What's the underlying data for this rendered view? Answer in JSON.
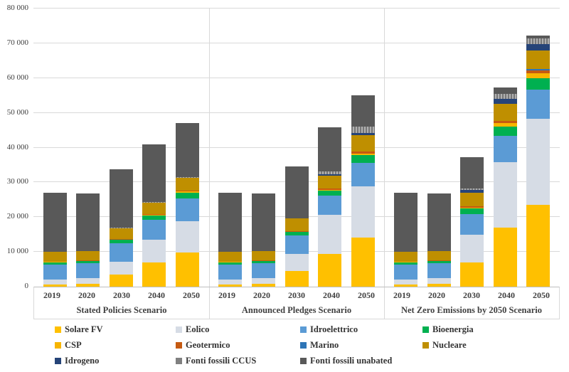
{
  "chart_data": {
    "type": "bar",
    "subtype": "stacked-column",
    "title": "",
    "xlabel": "",
    "ylabel": "",
    "y_axis": {
      "min": 0,
      "max": 80000,
      "tick_step": 10000,
      "tick_labels": [
        "0",
        "10 000",
        "20 000",
        "30 000",
        "40 000",
        "50 000",
        "60 000",
        "70 000",
        "80 000"
      ],
      "grid": true
    },
    "legend_position": "bottom",
    "scenarios": [
      {
        "label": "Stated Policies Scenario",
        "years": [
          "2019",
          "2020",
          "2030",
          "2040",
          "2050"
        ]
      },
      {
        "label": "Announced Pledges Scenario",
        "years": [
          "2019",
          "2020",
          "2030",
          "2040",
          "2050"
        ]
      },
      {
        "label": "Net Zero Emissions by 2050 Scenario",
        "years": [
          "2019",
          "2020",
          "2030",
          "2040",
          "2050"
        ]
      }
    ],
    "series": [
      {
        "name": "Solare FV",
        "color": "#FFC000",
        "hatch": false,
        "values": [
          [
            681,
            821,
            3450,
            6900,
            9900
          ],
          [
            681,
            821,
            4500,
            9400,
            14100
          ],
          [
            681,
            821,
            6970,
            17030,
            23470
          ]
        ]
      },
      {
        "name": "Eolico",
        "color": "#D6DCE5",
        "hatch": false,
        "values": [
          [
            1420,
            1592,
            3650,
            6700,
            8850
          ],
          [
            1420,
            1592,
            4900,
            11300,
            14700
          ],
          [
            1420,
            1592,
            8010,
            18790,
            24785
          ]
        ]
      },
      {
        "name": "Idroelettrico",
        "color": "#5B9BD5",
        "hatch": false,
        "values": [
          [
            4330,
            4347,
            5300,
            5600,
            6600
          ],
          [
            4330,
            4347,
            5250,
            5400,
            6900
          ],
          [
            4330,
            4347,
            5870,
            7540,
            8460
          ]
        ]
      },
      {
        "name": "Bioenergia",
        "color": "#00B050",
        "hatch": false,
        "values": [
          [
            625,
            666,
            1020,
            1300,
            1700
          ],
          [
            625,
            666,
            1100,
            1500,
            2100
          ],
          [
            625,
            666,
            1715,
            2730,
            3280
          ]
        ]
      },
      {
        "name": "CSP",
        "color": "#F7B500",
        "hatch": false,
        "values": [
          [
            13,
            14,
            50,
            120,
            300
          ],
          [
            13,
            14,
            80,
            250,
            500
          ],
          [
            13,
            14,
            205,
            930,
            1385
          ]
        ]
      },
      {
        "name": "Geotermico",
        "color": "#C55A11",
        "hatch": false,
        "values": [
          [
            89,
            94,
            150,
            230,
            330
          ],
          [
            89,
            94,
            180,
            300,
            500
          ],
          [
            89,
            94,
            330,
            575,
            820
          ]
        ]
      },
      {
        "name": "Marino",
        "color": "#2E75B6",
        "hatch": false,
        "values": [
          [
            1,
            1,
            5,
            20,
            40
          ],
          [
            1,
            1,
            10,
            60,
            110
          ],
          [
            1,
            1,
            55,
            165,
            345
          ]
        ]
      },
      {
        "name": "Nucleare",
        "color": "#BF8F00",
        "hatch": false,
        "values": [
          [
            2790,
            2698,
            3250,
            3300,
            3650
          ],
          [
            2790,
            2698,
            3550,
            3700,
            4600
          ],
          [
            2790,
            2698,
            3780,
            4855,
            5495
          ]
        ]
      },
      {
        "name": "Idrogeno",
        "color": "#264478",
        "hatch": false,
        "values": [
          [
            0,
            0,
            10,
            20,
            30
          ],
          [
            0,
            0,
            30,
            400,
            700
          ],
          [
            0,
            0,
            875,
            1325,
            1715
          ]
        ]
      },
      {
        "name": "Fonti fossili CCUS",
        "color": "#808080",
        "hatch": true,
        "values": [
          [
            2,
            4,
            50,
            120,
            200
          ],
          [
            2,
            4,
            70,
            900,
            1800
          ],
          [
            2,
            4,
            460,
            1460,
            1685
          ]
        ]
      },
      {
        "name": "Fonti fossili unabated",
        "color": "#595959",
        "hatch": false,
        "values": [
          [
            17140,
            16518,
            16880,
            16700,
            15400
          ],
          [
            17140,
            16518,
            14850,
            12700,
            9000
          ],
          [
            17140,
            16518,
            9050,
            1890,
            715
          ]
        ]
      }
    ]
  }
}
